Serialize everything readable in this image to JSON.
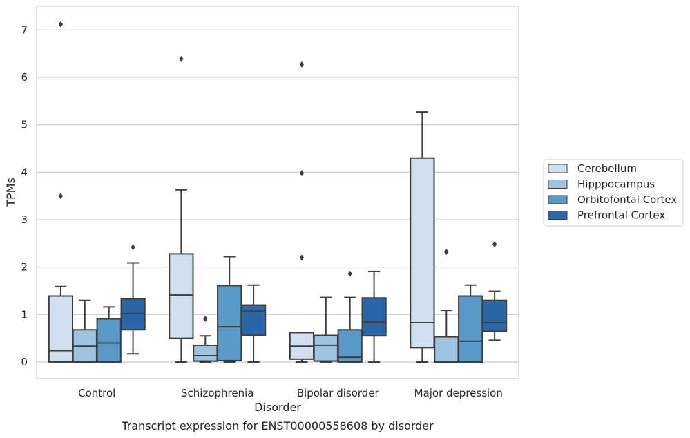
{
  "chart_data": {
    "type": "boxplot",
    "caption": "Transcript expression for ENST00000558608 by disorder",
    "xlabel": "Disorder",
    "ylabel": "TPMs",
    "ylim": [
      -0.35,
      7.5
    ],
    "yticks": [
      0,
      1,
      2,
      3,
      4,
      5,
      6,
      7
    ],
    "grid": "horizontal",
    "legend_placement": "right",
    "categories": [
      "Control",
      "Schizophrenia",
      "Bipolar disorder",
      "Major depression"
    ],
    "series": [
      {
        "name": "Cerebellum",
        "color": "#d1e0f1",
        "boxes": [
          {
            "whisker_low": 0,
            "q1": 0,
            "median": 0.24,
            "q3": 1.39,
            "whisker_high": 1.59,
            "outliers": [
              3.5,
              7.12
            ]
          },
          {
            "whisker_low": 0,
            "q1": 0.5,
            "median": 1.41,
            "q3": 2.28,
            "whisker_high": 3.63,
            "outliers": [
              6.39
            ]
          },
          {
            "whisker_low": 0,
            "q1": 0.06,
            "median": 0.33,
            "q3": 0.62,
            "whisker_high": 0.62,
            "outliers": [
              2.2,
              3.98,
              6.27
            ]
          },
          {
            "whisker_low": 0,
            "q1": 0.3,
            "median": 0.83,
            "q3": 4.3,
            "whisker_high": 5.27,
            "outliers": []
          }
        ]
      },
      {
        "name": "Hipppocampus",
        "color": "#9dc3e0",
        "boxes": [
          {
            "whisker_low": 0,
            "q1": 0,
            "median": 0.33,
            "q3": 0.68,
            "whisker_high": 1.3,
            "outliers": []
          },
          {
            "whisker_low": 0,
            "q1": 0.02,
            "median": 0.13,
            "q3": 0.35,
            "whisker_high": 0.55,
            "outliers": [
              0.91
            ]
          },
          {
            "whisker_low": 0,
            "q1": 0.02,
            "median": 0.35,
            "q3": 0.56,
            "whisker_high": 1.36,
            "outliers": []
          },
          {
            "whisker_low": 0,
            "q1": 0,
            "median": 0,
            "q3": 0.53,
            "whisker_high": 1.09,
            "outliers": [
              2.32
            ]
          }
        ]
      },
      {
        "name": "Orbitofontal Cortex",
        "color": "#5a9ac8",
        "boxes": [
          {
            "whisker_low": 0,
            "q1": 0,
            "median": 0.4,
            "q3": 0.91,
            "whisker_high": 1.16,
            "outliers": []
          },
          {
            "whisker_low": 0,
            "q1": 0.03,
            "median": 0.74,
            "q3": 1.61,
            "whisker_high": 2.22,
            "outliers": []
          },
          {
            "whisker_low": 0,
            "q1": 0,
            "median": 0.1,
            "q3": 0.68,
            "whisker_high": 1.36,
            "outliers": [
              1.86
            ]
          },
          {
            "whisker_low": 0,
            "q1": 0,
            "median": 0.44,
            "q3": 1.39,
            "whisker_high": 1.62,
            "outliers": []
          }
        ]
      },
      {
        "name": "Prefrontal Cortex",
        "color": "#2b67a8",
        "boxes": [
          {
            "whisker_low": 0.17,
            "q1": 0.68,
            "median": 1.02,
            "q3": 1.33,
            "whisker_high": 2.09,
            "outliers": [
              2.42
            ]
          },
          {
            "whisker_low": 0,
            "q1": 0.56,
            "median": 1.07,
            "q3": 1.2,
            "whisker_high": 1.62,
            "outliers": []
          },
          {
            "whisker_low": 0,
            "q1": 0.55,
            "median": 0.84,
            "q3": 1.35,
            "whisker_high": 1.91,
            "outliers": []
          },
          {
            "whisker_low": 0.46,
            "q1": 0.65,
            "median": 0.83,
            "q3": 1.3,
            "whisker_high": 1.49,
            "outliers": [
              2.48
            ]
          }
        ]
      }
    ]
  }
}
